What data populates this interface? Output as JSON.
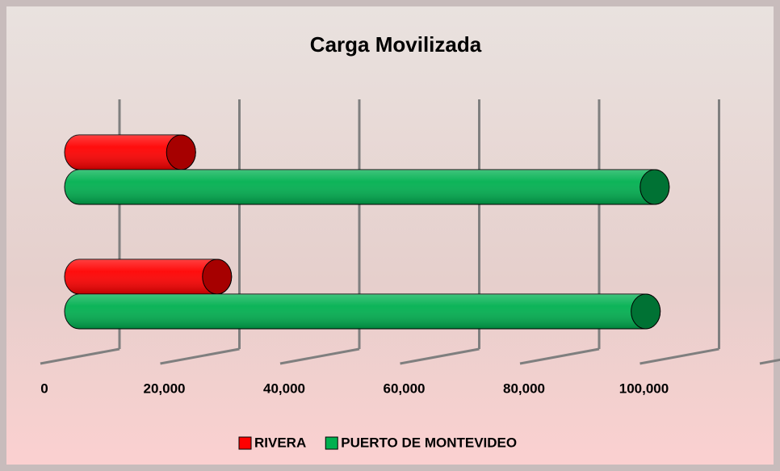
{
  "chart_data": {
    "type": "bar3d",
    "orientation": "horizontal",
    "title": "Carga Movilizada",
    "categories": [
      null,
      null
    ],
    "series": [
      {
        "name": "RIVERA",
        "color": "#ff0000",
        "values": [
          23000,
          17000
        ]
      },
      {
        "name": "PUERTO DE MONTEVIDEO",
        "color": "#00b050",
        "values": [
          94500,
          96000
        ]
      }
    ],
    "xlim": [
      0,
      120000
    ],
    "xticks": [
      0,
      {
        "value": 20000,
        "label": "20,000"
      },
      {
        "value": 40000,
        "label": "40,000"
      },
      {
        "value": 60000,
        "label": "60,000"
      },
      {
        "value": 80000,
        "label": "80,000"
      },
      {
        "value": 100000,
        "label": "100,000"
      }
    ],
    "grid": true,
    "legend": "bottom"
  }
}
